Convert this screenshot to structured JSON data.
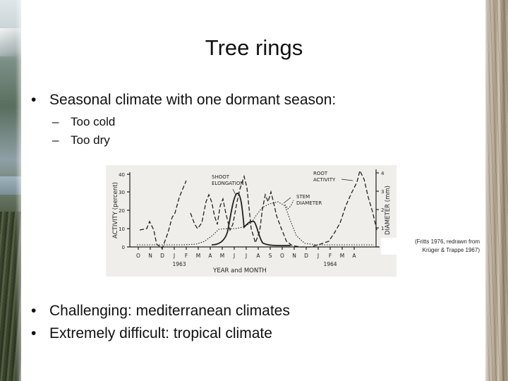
{
  "slide": {
    "title": "Tree rings",
    "bullets_top": [
      "Seasonal climate with one dormant season:"
    ],
    "sub_bullets": [
      "Too cold",
      "Too dry"
    ],
    "bullets_bottom": [
      "Challenging: mediterranean climates",
      "Extremely difficult: tropical climate"
    ],
    "bullet_glyph": "•",
    "dash_glyph": "–",
    "credit": {
      "line1": "(Fritts 1976, redrawn from",
      "line2": "Krüger & Trappe 1967)"
    }
  },
  "figure": {
    "left_axis_label": "ACTIVITY (percent)",
    "right_axis_label": "DIAMETER (mm)",
    "x_axis_title": "YEAR and MONTH",
    "left_ticks": [
      "40",
      "30",
      "20",
      "10",
      "0"
    ],
    "right_ticks": [
      "4",
      "3",
      "2",
      "1",
      "0"
    ],
    "months": [
      "O",
      "N",
      "D",
      "J",
      "F",
      "M",
      "A",
      "M",
      "J",
      "J",
      "A",
      "S",
      "O",
      "N",
      "D",
      "J",
      "F",
      "M",
      "A"
    ],
    "years": [
      "1963",
      "1964"
    ],
    "annotations": {
      "shoot": [
        "SHOOT",
        "ELONGATION"
      ],
      "root": [
        "ROOT",
        "ACTIVITY"
      ],
      "stem": [
        "STEM",
        "DIAMETER"
      ]
    },
    "ink_color": "#222222",
    "background_color": "#efeeeb"
  }
}
